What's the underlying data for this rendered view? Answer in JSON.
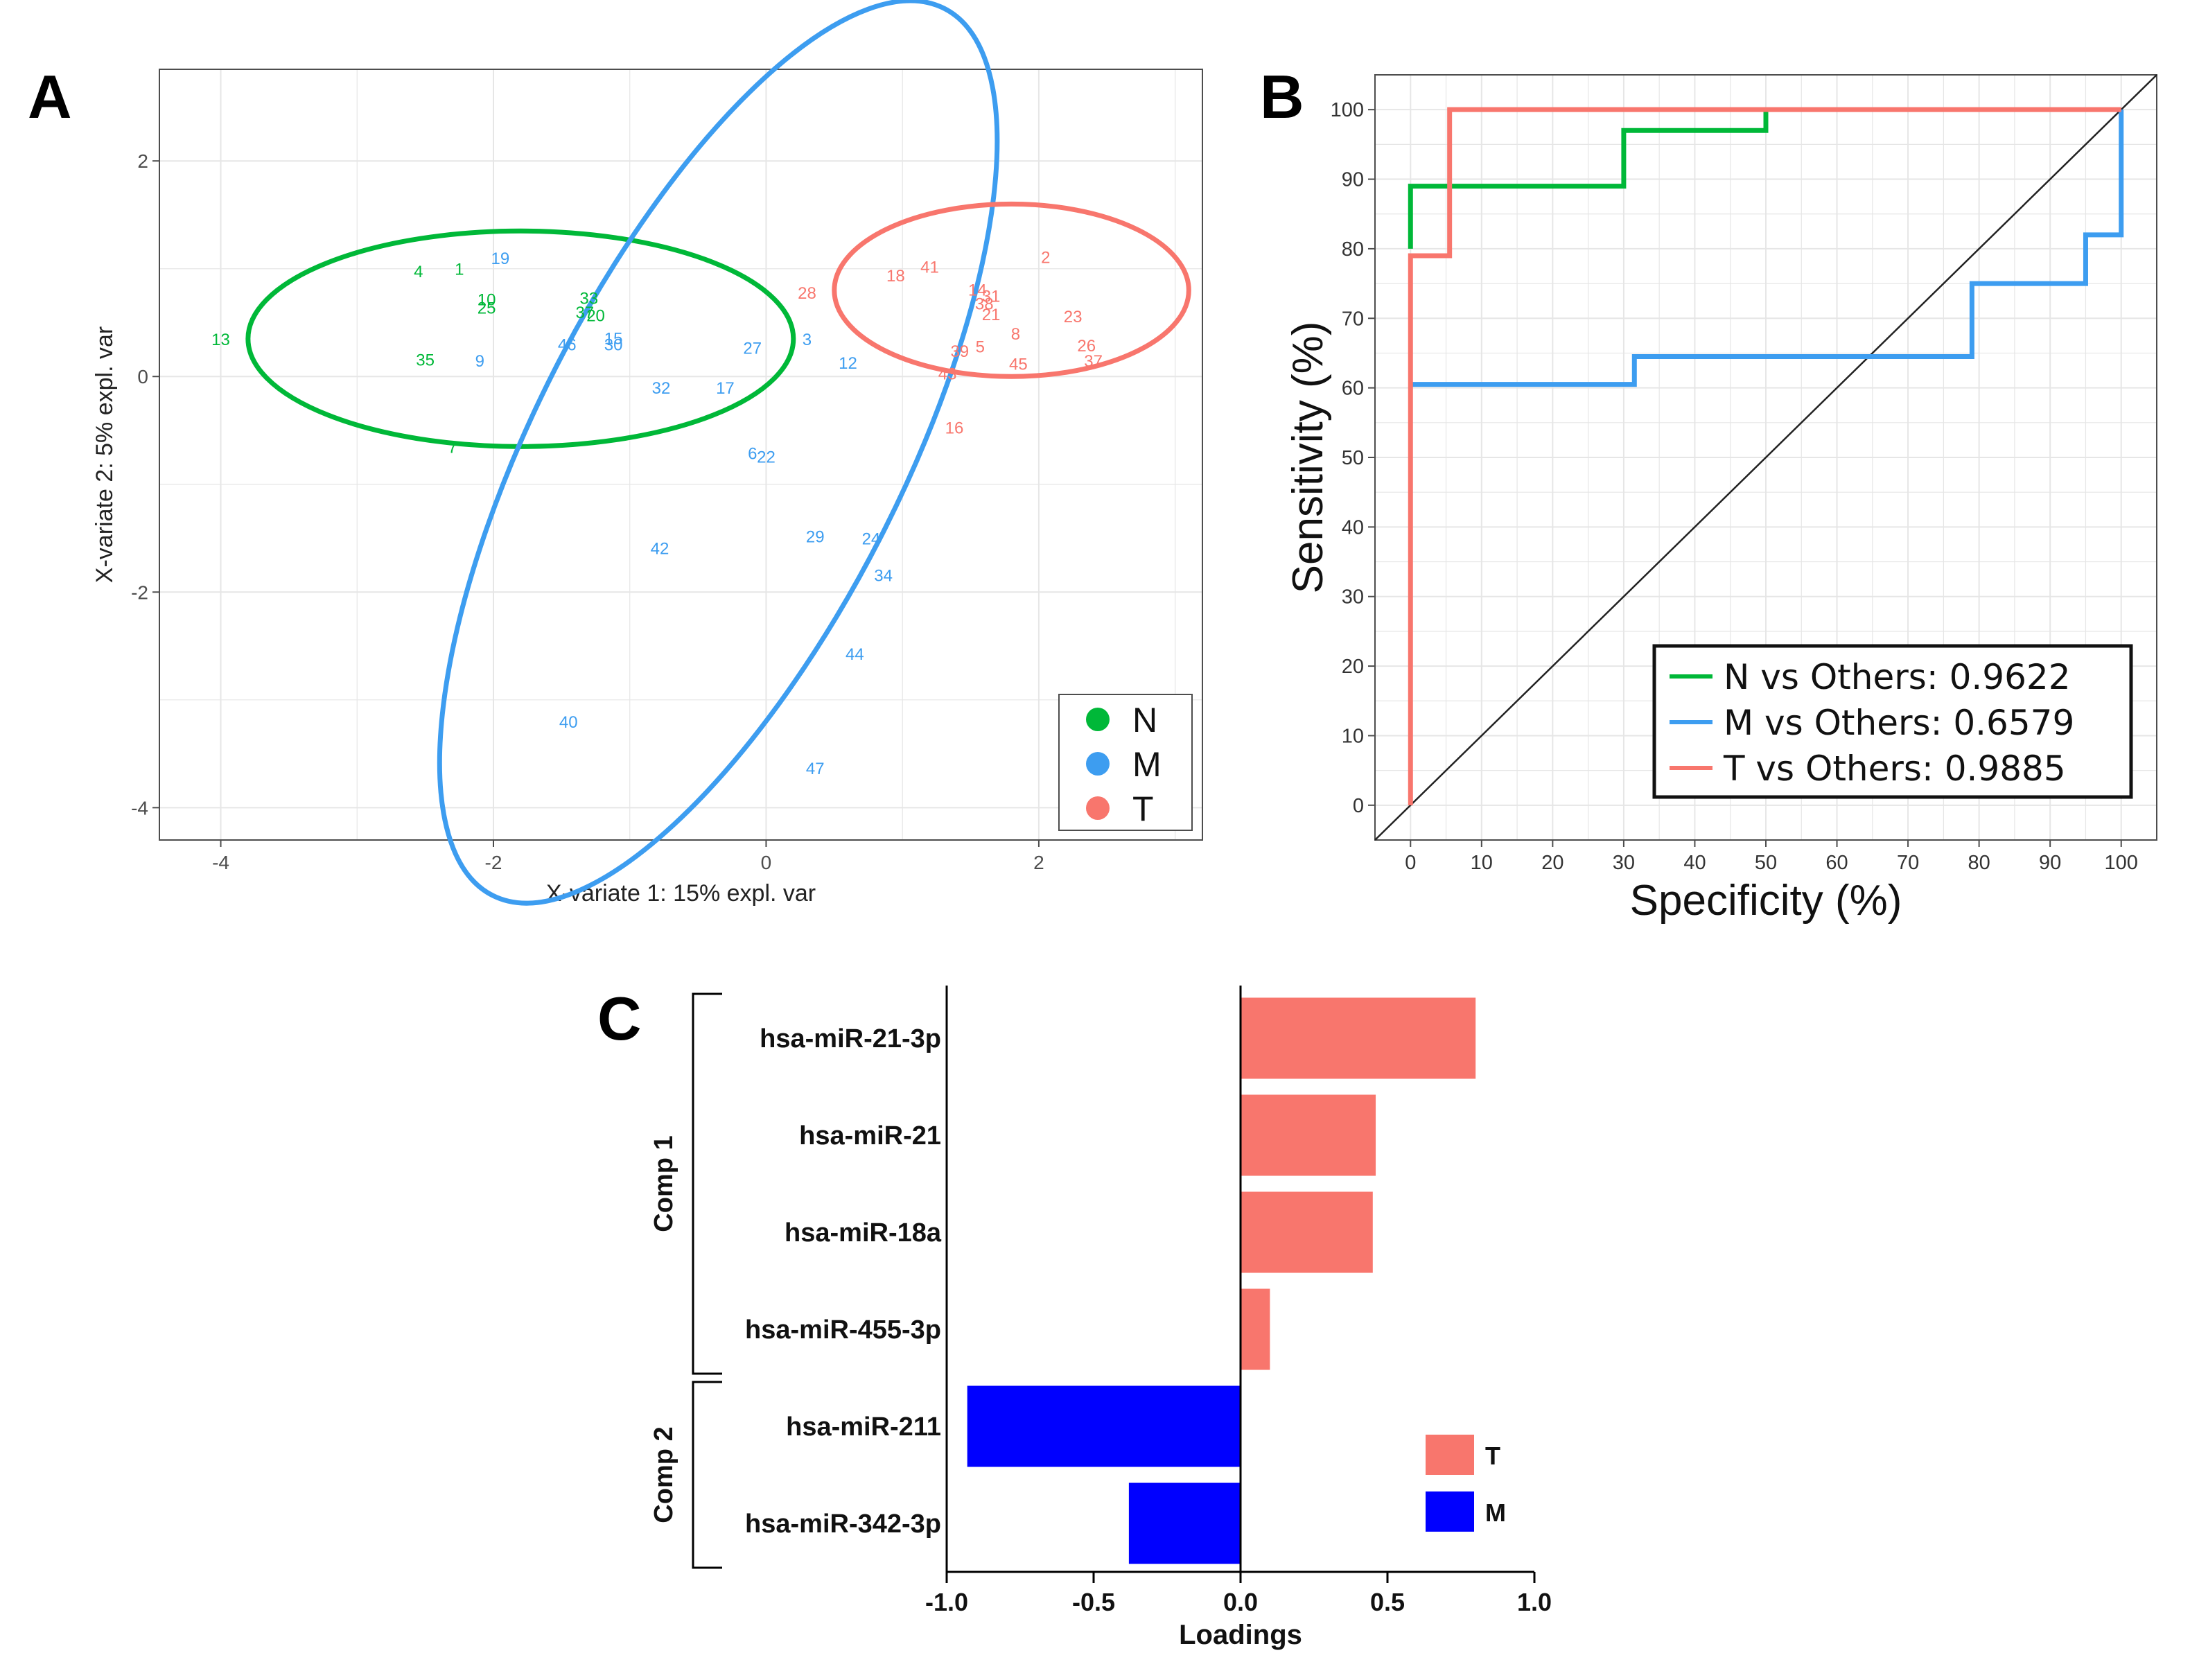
{
  "colors": {
    "N": "#00b838",
    "M": "#3d9df0",
    "T": "#f8766d",
    "barT": "#f8766d",
    "barM": "#0000ff",
    "grid": "#e6e6e6"
  },
  "panel_letters": [
    "A",
    "B",
    "C"
  ],
  "chart_data": [
    {
      "panel": "A",
      "type": "scatter",
      "xlabel": "X-variate 1: 15% expl. var",
      "ylabel": "X-variate 2: 5% expl. var",
      "xlim": [
        -4.45,
        3.2
      ],
      "ylim": [
        -4.3,
        2.85
      ],
      "xticks": [
        -4,
        -2,
        0,
        2
      ],
      "yticks": [
        -4,
        -2,
        0,
        2
      ],
      "legend": {
        "position": "bottom-right",
        "entries": [
          "N",
          "M",
          "T"
        ]
      },
      "ellipses": [
        {
          "group": "N",
          "cx": -1.8,
          "cy": 0.35,
          "rx": 2.0,
          "ry": 1.0,
          "angle": 0
        },
        {
          "group": "M",
          "cx": -0.35,
          "cy": -0.7,
          "rx": 3.65,
          "ry": 1.7,
          "angle": -63
        },
        {
          "group": "T",
          "cx": 1.8,
          "cy": 0.8,
          "rx": 1.3,
          "ry": 0.8,
          "angle": 0
        }
      ],
      "points": [
        {
          "label": "13",
          "group": "N",
          "x": -4.0,
          "y": 0.35
        },
        {
          "label": "4",
          "group": "N",
          "x": -2.55,
          "y": 0.98
        },
        {
          "label": "1",
          "group": "N",
          "x": -2.25,
          "y": 1.0
        },
        {
          "label": "10",
          "group": "N",
          "x": -2.05,
          "y": 0.72
        },
        {
          "label": "25",
          "group": "N",
          "x": -2.05,
          "y": 0.64
        },
        {
          "label": "35",
          "group": "N",
          "x": -2.5,
          "y": 0.16
        },
        {
          "label": "7",
          "group": "N",
          "x": -2.3,
          "y": -0.65
        },
        {
          "label": "33",
          "group": "N",
          "x": -1.3,
          "y": 0.73
        },
        {
          "label": "37",
          "group": "N",
          "x": -1.33,
          "y": 0.6
        },
        {
          "label": "20",
          "group": "N",
          "x": -1.25,
          "y": 0.57
        },
        {
          "label": "19",
          "group": "M",
          "x": -1.95,
          "y": 1.1
        },
        {
          "label": "9",
          "group": "M",
          "x": -2.1,
          "y": 0.15
        },
        {
          "label": "46",
          "group": "M",
          "x": -1.46,
          "y": 0.3
        },
        {
          "label": "15",
          "group": "M",
          "x": -1.12,
          "y": 0.36
        },
        {
          "label": "30",
          "group": "M",
          "x": -1.12,
          "y": 0.3
        },
        {
          "label": "32",
          "group": "M",
          "x": -0.77,
          "y": -0.1
        },
        {
          "label": "17",
          "group": "M",
          "x": -0.3,
          "y": -0.1
        },
        {
          "label": "27",
          "group": "M",
          "x": -0.1,
          "y": 0.27
        },
        {
          "label": "3",
          "group": "M",
          "x": 0.3,
          "y": 0.35
        },
        {
          "label": "12",
          "group": "M",
          "x": 0.6,
          "y": 0.13
        },
        {
          "label": "6",
          "group": "M",
          "x": -0.1,
          "y": -0.71
        },
        {
          "label": "22",
          "group": "M",
          "x": 0.0,
          "y": -0.74
        },
        {
          "label": "42",
          "group": "M",
          "x": -0.78,
          "y": -1.59
        },
        {
          "label": "29",
          "group": "M",
          "x": 0.36,
          "y": -1.48
        },
        {
          "label": "24",
          "group": "M",
          "x": 0.77,
          "y": -1.5
        },
        {
          "label": "34",
          "group": "M",
          "x": 0.86,
          "y": -1.84
        },
        {
          "label": "44",
          "group": "M",
          "x": 0.65,
          "y": -2.57
        },
        {
          "label": "40",
          "group": "M",
          "x": -1.45,
          "y": -3.2
        },
        {
          "label": "47",
          "group": "M",
          "x": 0.36,
          "y": -3.63
        },
        {
          "label": "28",
          "group": "T",
          "x": 0.3,
          "y": 0.78
        },
        {
          "label": "18",
          "group": "T",
          "x": 0.95,
          "y": 0.94
        },
        {
          "label": "41",
          "group": "T",
          "x": 1.2,
          "y": 1.02
        },
        {
          "label": "2",
          "group": "T",
          "x": 2.05,
          "y": 1.11
        },
        {
          "label": "14",
          "group": "T",
          "x": 1.55,
          "y": 0.81
        },
        {
          "label": "31",
          "group": "T",
          "x": 1.65,
          "y": 0.75
        },
        {
          "label": "38",
          "group": "T",
          "x": 1.6,
          "y": 0.68
        },
        {
          "label": "21",
          "group": "T",
          "x": 1.65,
          "y": 0.58
        },
        {
          "label": "23",
          "group": "T",
          "x": 2.25,
          "y": 0.56
        },
        {
          "label": "8",
          "group": "T",
          "x": 1.83,
          "y": 0.4
        },
        {
          "label": "39",
          "group": "T",
          "x": 1.42,
          "y": 0.24
        },
        {
          "label": "5",
          "group": "T",
          "x": 1.57,
          "y": 0.28
        },
        {
          "label": "26",
          "group": "T",
          "x": 2.35,
          "y": 0.29
        },
        {
          "label": "37",
          "group": "T",
          "x": 2.4,
          "y": 0.15
        },
        {
          "label": "45",
          "group": "T",
          "x": 1.85,
          "y": 0.12
        },
        {
          "label": "43",
          "group": "T",
          "x": 1.33,
          "y": 0.03
        },
        {
          "label": "16",
          "group": "T",
          "x": 1.38,
          "y": -0.47
        }
      ]
    },
    {
      "panel": "B",
      "type": "line",
      "xlabel": "Specificity (%)",
      "ylabel": "Sensitivity (%)",
      "xlim": [
        -5,
        105
      ],
      "ylim": [
        -5,
        105
      ],
      "xticks": [
        0,
        10,
        20,
        30,
        40,
        50,
        60,
        70,
        80,
        90,
        100
      ],
      "yticks": [
        0,
        10,
        20,
        30,
        40,
        50,
        60,
        70,
        80,
        90,
        100
      ],
      "legend": {
        "position": "bottom-right"
      },
      "diagonal": [
        [
          -5,
          -5
        ],
        [
          105,
          105
        ]
      ],
      "series": [
        {
          "key": "N",
          "name": "N vs Others: 0.9622",
          "points": [
            [
              0,
              80
            ],
            [
              0,
              89
            ],
            [
              30,
              89
            ],
            [
              30,
              97
            ],
            [
              50,
              97
            ],
            [
              50,
              100
            ]
          ]
        },
        {
          "key": "M",
          "name": "M vs Others: 0.6579",
          "points": [
            [
              0,
              60.5
            ],
            [
              31.5,
              60.5
            ],
            [
              31.5,
              64.5
            ],
            [
              79,
              64.5
            ],
            [
              79,
              75
            ],
            [
              95,
              75
            ],
            [
              95,
              82
            ],
            [
              100,
              82
            ],
            [
              100,
              100
            ]
          ]
        },
        {
          "key": "T",
          "name": "T vs Others: 0.9885",
          "points": [
            [
              0,
              0
            ],
            [
              0,
              79
            ],
            [
              5.5,
              79
            ],
            [
              5.5,
              100
            ],
            [
              100,
              100
            ]
          ]
        }
      ]
    },
    {
      "panel": "C",
      "type": "bar",
      "orientation": "horizontal",
      "xlabel": "Loadings",
      "xlim": [
        -1.0,
        1.0
      ],
      "xticks": [
        "-1.0",
        "-0.5",
        "0.0",
        "0.5",
        "1.0"
      ],
      "categories": [
        "hsa-miR-21-3p",
        "hsa-miR-21",
        "hsa-miR-18a",
        "hsa-miR-455-3p",
        "hsa-miR-211",
        "hsa-miR-342-3p"
      ],
      "values": [
        0.8,
        0.46,
        0.45,
        0.1,
        -0.93,
        -0.38
      ],
      "groups": [
        "T",
        "T",
        "T",
        "T",
        "M",
        "M"
      ],
      "components": [
        {
          "label": "Comp 1",
          "from": 0,
          "to": 3
        },
        {
          "label": "Comp 2",
          "from": 4,
          "to": 5
        }
      ],
      "legend": {
        "position": "bottom-right",
        "entries": [
          "T",
          "M"
        ]
      }
    }
  ]
}
